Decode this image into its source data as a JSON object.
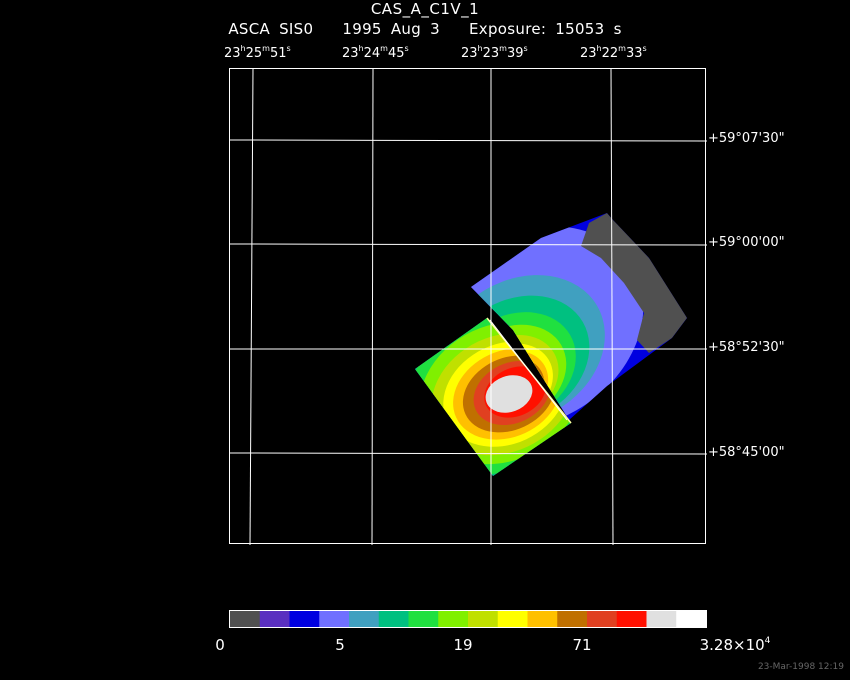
{
  "title": "CAS_A_C1V_1",
  "subtitle": {
    "instrument": "ASCA SIS0",
    "date": "1995 Aug  3",
    "exposure": "Exposure: 15053 s"
  },
  "ra_labels": [
    {
      "h": "23",
      "m": "25",
      "s": "51"
    },
    {
      "h": "23",
      "m": "24",
      "s": "45"
    },
    {
      "h": "23",
      "m": "23",
      "s": "39"
    },
    {
      "h": "23",
      "m": "22",
      "s": "33"
    }
  ],
  "dec_labels": [
    "+59°07'30\"",
    "+59°00'00\"",
    "+58°52'30\"",
    "+58°45'00\""
  ],
  "colorbar": {
    "colors": [
      "#505050",
      "#5a2fc0",
      "#0000e0",
      "#7070ff",
      "#40a0c0",
      "#00c080",
      "#20e040",
      "#80f000",
      "#c0e000",
      "#ffff00",
      "#ffc000",
      "#c07000",
      "#e04020",
      "#ff1000",
      "#e0e0e0",
      "#ffffff"
    ],
    "labels": [
      "0",
      "5",
      "19",
      "71"
    ],
    "max_label_base": "3.28×10",
    "max_label_exp": "4"
  },
  "footer": "23-Mar-1998 12:19"
}
